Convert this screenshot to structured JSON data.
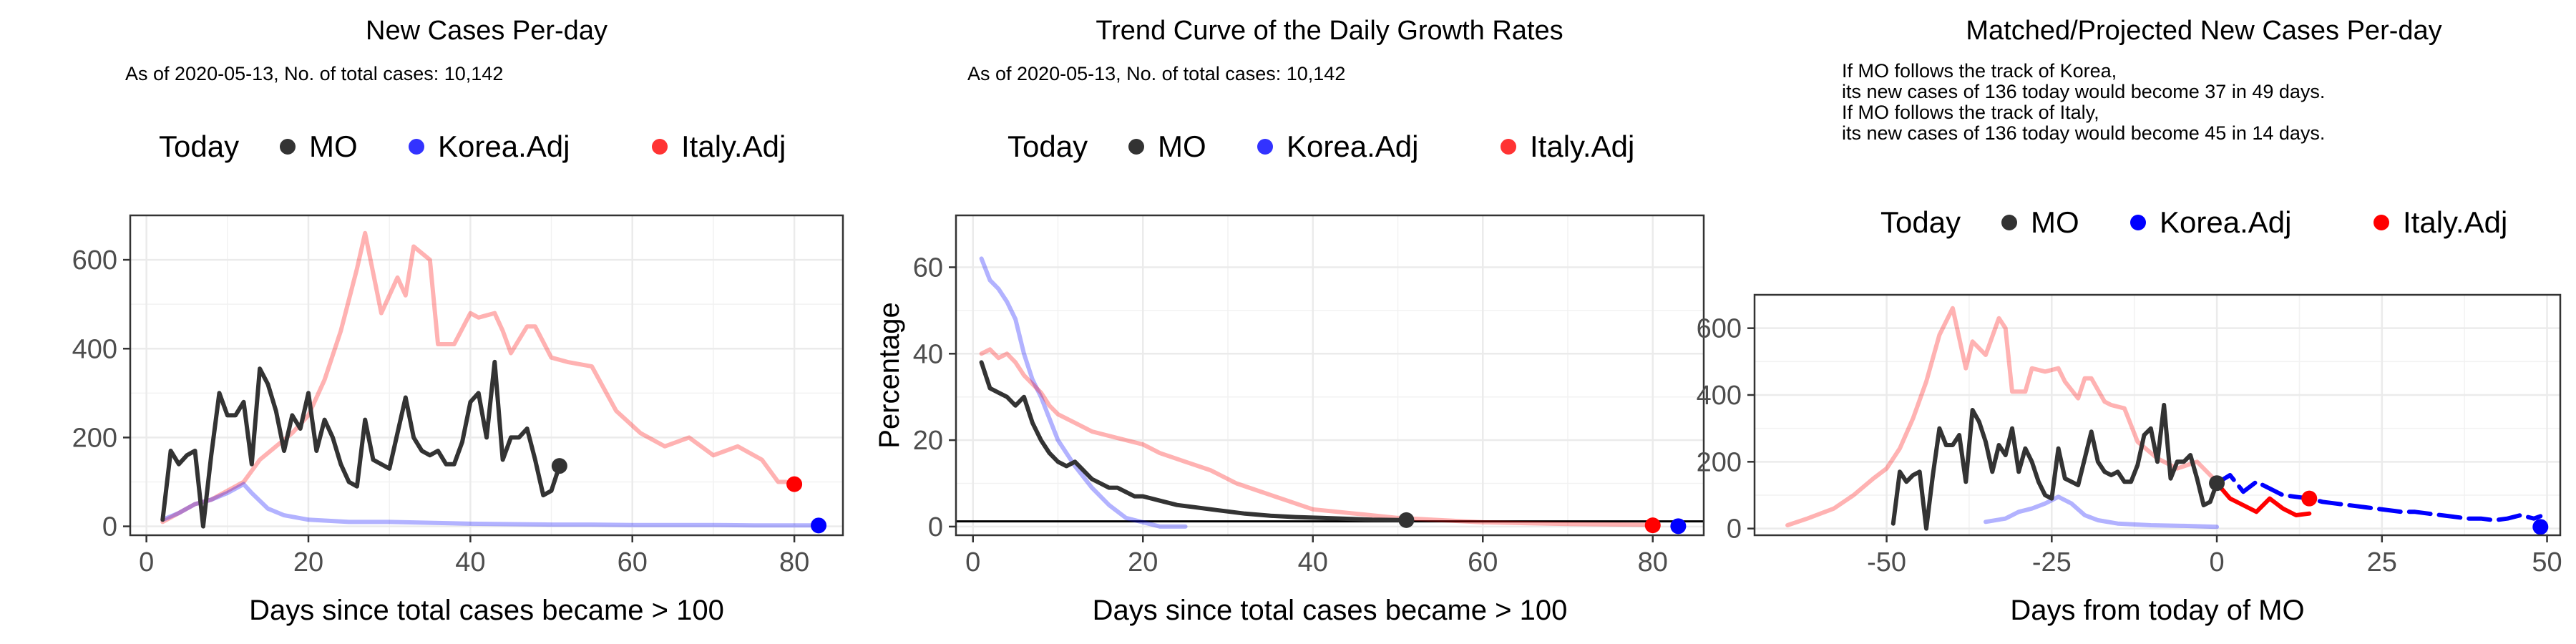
{
  "colors": {
    "today": "#000000",
    "mo": "#333333",
    "korea": "#0000FF",
    "italy": "#FF0000",
    "grid": "#EBEBEB",
    "frame": "#333333"
  },
  "chart_data": [
    {
      "type": "line",
      "title": "New Cases Per-day",
      "subtitle_lines": [
        "As of 2020-05-13, No. of total cases: 10,142"
      ],
      "xlabel": "Days since total cases became > 100",
      "ylabel": "",
      "xlim": [
        -2,
        86
      ],
      "ylim": [
        -20,
        700
      ],
      "xticks": [
        0,
        20,
        40,
        60,
        80
      ],
      "yticks": [
        0,
        200,
        400,
        600
      ],
      "grid": true,
      "legend_position": "top",
      "legend": {
        "title": "Today",
        "items": [
          "MO",
          "Korea.Adj",
          "Italy.Adj"
        ]
      },
      "series": [
        {
          "name": "Italy.Adj",
          "style": "faint",
          "x": [
            2,
            4,
            6,
            8,
            10,
            12,
            14,
            16,
            18,
            20,
            22,
            24,
            26,
            27,
            29,
            31,
            32,
            33,
            35,
            36,
            38,
            40,
            41,
            43,
            44,
            45,
            47,
            48,
            50,
            52,
            55,
            58,
            61,
            64,
            67,
            70,
            73,
            76,
            78,
            79,
            80
          ],
          "y": [
            10,
            30,
            50,
            60,
            80,
            100,
            150,
            180,
            210,
            250,
            330,
            440,
            580,
            660,
            480,
            560,
            520,
            630,
            600,
            410,
            410,
            480,
            470,
            480,
            440,
            390,
            450,
            450,
            380,
            370,
            360,
            260,
            210,
            180,
            200,
            160,
            180,
            150,
            100,
            100,
            95
          ]
        },
        {
          "name": "Korea.Adj",
          "style": "faint",
          "x": [
            2,
            4,
            6,
            8,
            10,
            12,
            13,
            15,
            17,
            20,
            25,
            30,
            35,
            40,
            45,
            50,
            55,
            60,
            65,
            70,
            75,
            80,
            83
          ],
          "y": [
            15,
            30,
            50,
            60,
            75,
            95,
            75,
            40,
            25,
            15,
            10,
            10,
            8,
            6,
            5,
            4,
            4,
            3,
            3,
            3,
            2,
            2,
            2
          ]
        },
        {
          "name": "MO",
          "style": "solid",
          "x": [
            2,
            3,
            4,
            5,
            6,
            7,
            8,
            9,
            10,
            11,
            12,
            13,
            14,
            15,
            16,
            17,
            18,
            19,
            20,
            21,
            22,
            23,
            24,
            25,
            26,
            27,
            28,
            29,
            30,
            31,
            32,
            33,
            34,
            35,
            36,
            37,
            38,
            39,
            40,
            41,
            42,
            43,
            44,
            45,
            46,
            47,
            48,
            49,
            50,
            51
          ],
          "y": [
            15,
            170,
            140,
            160,
            170,
            0,
            160,
            300,
            250,
            250,
            280,
            140,
            355,
            320,
            260,
            170,
            250,
            220,
            300,
            170,
            240,
            200,
            140,
            100,
            90,
            240,
            150,
            140,
            130,
            210,
            290,
            200,
            170,
            160,
            170,
            140,
            140,
            190,
            280,
            300,
            200,
            370,
            150,
            200,
            200,
            220,
            150,
            70,
            80,
            136
          ]
        }
      ],
      "today_points": [
        {
          "series": "MO",
          "x": 51,
          "y": 136
        },
        {
          "series": "Korea.Adj",
          "x": 83,
          "y": 2
        },
        {
          "series": "Italy.Adj",
          "x": 80,
          "y": 95
        }
      ]
    },
    {
      "type": "line",
      "title": "Trend Curve of the Daily Growth Rates",
      "subtitle_lines": [
        "As of 2020-05-13, No. of total cases: 10,142"
      ],
      "xlabel": "Days since total cases became > 100",
      "ylabel": "Percentage",
      "xlim": [
        -2,
        86
      ],
      "ylim": [
        -2,
        72
      ],
      "xticks": [
        0,
        20,
        40,
        60,
        80
      ],
      "yticks": [
        0,
        20,
        40,
        60
      ],
      "grid": true,
      "hline": 1.2,
      "legend_position": "top",
      "legend": {
        "title": "Today",
        "items": [
          "MO",
          "Korea.Adj",
          "Italy.Adj"
        ]
      },
      "series": [
        {
          "name": "Korea.Adj",
          "style": "faint",
          "x": [
            1,
            2,
            3,
            4,
            5,
            6,
            7,
            8,
            9,
            10,
            12,
            14,
            16,
            18,
            20,
            22,
            25
          ],
          "y": [
            62,
            57,
            55,
            52,
            48,
            40,
            34,
            30,
            25,
            20,
            14,
            9,
            5,
            2,
            1,
            0,
            0
          ]
        },
        {
          "name": "Italy.Adj",
          "style": "faint",
          "x": [
            1,
            2,
            3,
            4,
            5,
            6,
            7,
            8,
            9,
            10,
            12,
            14,
            16,
            18,
            20,
            22,
            25,
            28,
            31,
            34,
            37,
            40,
            45,
            50,
            55,
            60,
            65,
            70,
            75,
            80
          ],
          "y": [
            40,
            41,
            39,
            40,
            38,
            35,
            33,
            31,
            28,
            26,
            24,
            22,
            21,
            20,
            19,
            17,
            15,
            13,
            10,
            8,
            6,
            4,
            3,
            2,
            1.5,
            1,
            0.8,
            0.6,
            0.5,
            0.4
          ]
        },
        {
          "name": "MO",
          "style": "solid",
          "x": [
            1,
            2,
            3,
            4,
            5,
            6,
            7,
            8,
            9,
            10,
            11,
            12,
            13,
            14,
            15,
            16,
            17,
            18,
            19,
            20,
            22,
            24,
            26,
            28,
            30,
            32,
            35,
            38,
            41,
            44,
            47,
            51
          ],
          "y": [
            38,
            32,
            31,
            30,
            28,
            30,
            24,
            20,
            17,
            15,
            14,
            15,
            13,
            11,
            10,
            9,
            9,
            8,
            7,
            7,
            6,
            5,
            4.5,
            4,
            3.5,
            3,
            2.5,
            2.2,
            2,
            1.8,
            1.6,
            1.5
          ]
        }
      ],
      "today_points": [
        {
          "series": "MO",
          "x": 51,
          "y": 1.5
        },
        {
          "series": "Korea.Adj",
          "x": 83,
          "y": 0.1
        },
        {
          "series": "Italy.Adj",
          "x": 80,
          "y": 0.3
        }
      ]
    },
    {
      "type": "line",
      "title": "Matched/Projected New Cases Per-day",
      "subtitle_lines": [
        "If MO follows the track of Korea,",
        "its new cases of 136 today would become 37 in 49 days.",
        "If MO follows the track of Italy,",
        "its new cases of 136 today would become 45 in 14 days."
      ],
      "xlabel": "Days from today of MO",
      "ylabel": "",
      "xlim": [
        -70,
        52
      ],
      "ylim": [
        -20,
        700
      ],
      "xticks": [
        -50,
        -25,
        0,
        25,
        50
      ],
      "xtick_labels": [
        "-50",
        "-25",
        "0",
        "25",
        "50"
      ],
      "yticks": [
        0,
        200,
        400,
        600
      ],
      "grid": true,
      "legend_position": "top",
      "legend": {
        "title": "Today",
        "items": [
          "MO",
          "Korea.Adj",
          "Italy.Adj"
        ]
      },
      "series": [
        {
          "name": "Italy.Adj",
          "style": "faint",
          "x": [
            -65,
            -62,
            -58,
            -55,
            -52,
            -50,
            -48,
            -46,
            -44,
            -42,
            -40,
            -38,
            -37,
            -35,
            -33,
            -32,
            -31,
            -29,
            -28,
            -26,
            -24,
            -23,
            -21,
            -20,
            -19,
            -17,
            -16,
            -14,
            -12,
            -9,
            -6,
            -3,
            0
          ],
          "y": [
            10,
            30,
            60,
            100,
            150,
            180,
            240,
            330,
            440,
            580,
            660,
            480,
            560,
            520,
            630,
            600,
            410,
            410,
            480,
            470,
            480,
            440,
            390,
            450,
            450,
            380,
            370,
            360,
            260,
            210,
            180,
            200,
            140
          ]
        },
        {
          "name": "Korea.Adj",
          "style": "faint",
          "x": [
            -35,
            -32,
            -30,
            -28,
            -26,
            -24,
            -22,
            -20,
            -18,
            -15,
            -10,
            -5,
            0
          ],
          "y": [
            20,
            30,
            50,
            60,
            75,
            95,
            75,
            40,
            25,
            15,
            10,
            8,
            5
          ]
        },
        {
          "name": "MO",
          "style": "solid",
          "x": [
            -49,
            -48,
            -47,
            -46,
            -45,
            -44,
            -43,
            -42,
            -41,
            -40,
            -39,
            -38,
            -37,
            -36,
            -35,
            -34,
            -33,
            -32,
            -31,
            -30,
            -29,
            -28,
            -27,
            -26,
            -25,
            -24,
            -23,
            -22,
            -21,
            -20,
            -19,
            -18,
            -17,
            -16,
            -15,
            -14,
            -13,
            -12,
            -11,
            -10,
            -9,
            -8,
            -7,
            -6,
            -5,
            -4,
            -3,
            -2,
            -1,
            0
          ],
          "y": [
            15,
            170,
            140,
            160,
            170,
            0,
            160,
            300,
            250,
            250,
            280,
            140,
            355,
            320,
            260,
            170,
            250,
            220,
            300,
            170,
            240,
            200,
            140,
            100,
            90,
            240,
            150,
            140,
            130,
            210,
            290,
            200,
            170,
            160,
            170,
            140,
            140,
            190,
            280,
            300,
            200,
            370,
            150,
            200,
            200,
            220,
            150,
            70,
            80,
            136
          ]
        },
        {
          "name": "Korea.Adj",
          "style": "dashed",
          "x": [
            0,
            2,
            4,
            6,
            8,
            10,
            12,
            14,
            16,
            18,
            20,
            22,
            24,
            26,
            28,
            30,
            32,
            34,
            36,
            38,
            40,
            42,
            44,
            46,
            48,
            49
          ],
          "y": [
            136,
            160,
            110,
            140,
            120,
            100,
            95,
            90,
            80,
            75,
            70,
            65,
            60,
            55,
            50,
            50,
            45,
            40,
            35,
            30,
            30,
            25,
            30,
            40,
            30,
            37
          ]
        },
        {
          "name": "Italy.Adj",
          "style": "solid-color",
          "x": [
            0,
            2,
            4,
            6,
            8,
            10,
            12,
            14
          ],
          "y": [
            136,
            90,
            70,
            50,
            90,
            60,
            40,
            45
          ]
        }
      ],
      "today_points": [
        {
          "series": "MO",
          "x": 0,
          "y": 136
        },
        {
          "series": "Korea.Adj",
          "x": 49,
          "y": 5
        },
        {
          "series": "Italy.Adj",
          "x": 14,
          "y": 90
        }
      ]
    }
  ]
}
